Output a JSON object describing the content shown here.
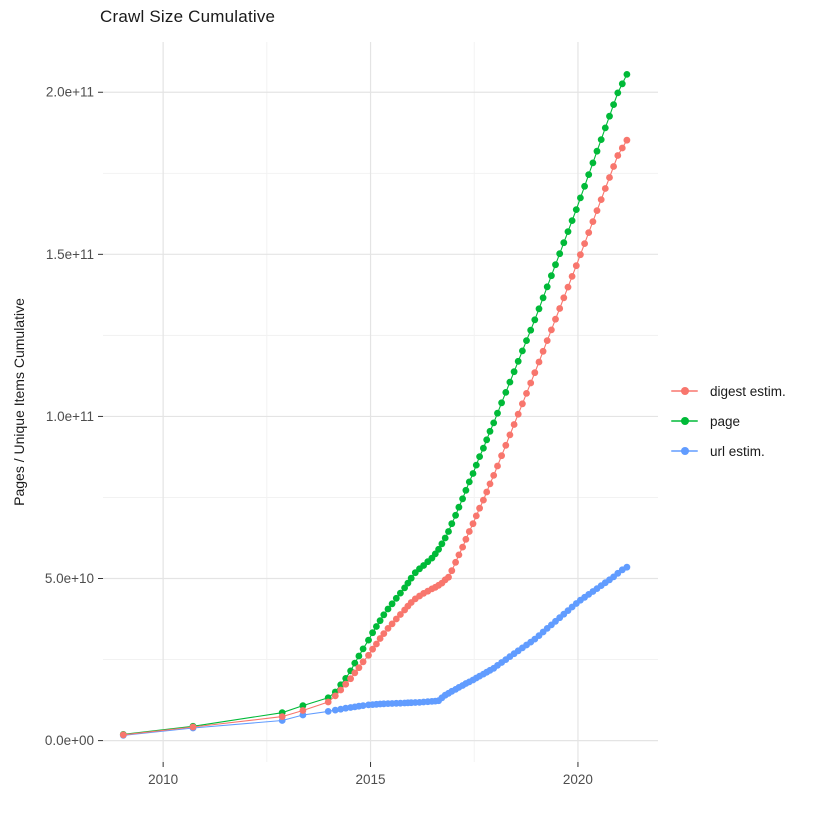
{
  "figure": {
    "title": "Crawl Size Cumulative"
  },
  "legend": {
    "items": [
      {
        "label": "digest estim.",
        "color": "#F8766D"
      },
      {
        "label": "page",
        "color": "#00BA38"
      },
      {
        "label": "url estim.",
        "color": "#619CFF"
      }
    ]
  },
  "chart_data": {
    "type": "line",
    "title": "Crawl Size Cumulative",
    "xlabel": "",
    "ylabel": "Pages / Unique Items Cumulative",
    "value_unit": "1e9",
    "grid": true,
    "legend_position": "right",
    "xlim": [
      2008.55,
      2021.93
    ],
    "ylim_e9": [
      -6.6,
      215.5
    ],
    "x_ticks": [
      {
        "value": 2010,
        "label": "2010"
      },
      {
        "value": 2015,
        "label": "2015"
      },
      {
        "value": 2020,
        "label": "2020"
      }
    ],
    "y_ticks": [
      {
        "value": 0,
        "label": "0.0e+00"
      },
      {
        "value": 50,
        "label": "5.0e+10"
      },
      {
        "value": 100,
        "label": "1.0e+11"
      },
      {
        "value": 150,
        "label": "1.5e+11"
      },
      {
        "value": 200,
        "label": "2.0e+11"
      }
    ],
    "x_minor": [
      2012.5,
      2017.5
    ],
    "y_minor": [
      25,
      75,
      125,
      175
    ],
    "style": {
      "background": "#FFFFFF",
      "grid_major_color": "#E4E4E4",
      "grid_minor_color": "#F1F1F1",
      "axis_text_color": "#4D4D4D",
      "tick_color": "#333333",
      "text_color": "#1A1A1A",
      "point_radius": 3.4,
      "line_width": 1.1
    },
    "draw_order": [
      1,
      2,
      0
    ],
    "series": [
      {
        "id": "digest",
        "name": "digest estim.",
        "color": "#F8766D",
        "points": [
          [
            2009.04,
            1.8
          ],
          [
            2010.72,
            4.2
          ],
          [
            2012.87,
            7.4
          ],
          [
            2013.37,
            9.3
          ],
          [
            2013.98,
            11.9
          ],
          [
            2014.15,
            13.8
          ],
          [
            2014.28,
            15.6
          ],
          [
            2014.4,
            17.4
          ],
          [
            2014.52,
            19.1
          ],
          [
            2014.62,
            20.9
          ],
          [
            2014.72,
            22.5
          ],
          [
            2014.82,
            24.3
          ],
          [
            2014.95,
            26.3
          ],
          [
            2015.05,
            28.2
          ],
          [
            2015.14,
            29.8
          ],
          [
            2015.23,
            31.5
          ],
          [
            2015.32,
            33.0
          ],
          [
            2015.42,
            34.6
          ],
          [
            2015.52,
            36.0
          ],
          [
            2015.62,
            37.5
          ],
          [
            2015.72,
            38.9
          ],
          [
            2015.82,
            40.3
          ],
          [
            2015.9,
            41.5
          ],
          [
            2015.98,
            42.6
          ],
          [
            2016.08,
            43.7
          ],
          [
            2016.18,
            44.6
          ],
          [
            2016.28,
            45.4
          ],
          [
            2016.38,
            46.1
          ],
          [
            2016.48,
            46.8
          ],
          [
            2016.56,
            47.3
          ],
          [
            2016.64,
            47.9
          ],
          [
            2016.72,
            48.6
          ],
          [
            2016.8,
            49.6
          ],
          [
            2016.88,
            50.4
          ],
          [
            2016.96,
            52.4
          ],
          [
            2017.05,
            55.0
          ],
          [
            2017.13,
            57.3
          ],
          [
            2017.22,
            59.7
          ],
          [
            2017.3,
            62.1
          ],
          [
            2017.38,
            64.5
          ],
          [
            2017.47,
            66.9
          ],
          [
            2017.55,
            69.3
          ],
          [
            2017.63,
            71.7
          ],
          [
            2017.72,
            74.2
          ],
          [
            2017.8,
            76.7
          ],
          [
            2017.88,
            79.2
          ],
          [
            2017.97,
            81.8
          ],
          [
            2018.06,
            84.7
          ],
          [
            2018.16,
            87.9
          ],
          [
            2018.26,
            91.1
          ],
          [
            2018.36,
            94.3
          ],
          [
            2018.46,
            97.5
          ],
          [
            2018.56,
            100.7
          ],
          [
            2018.66,
            103.9
          ],
          [
            2018.76,
            107.1
          ],
          [
            2018.86,
            110.3
          ],
          [
            2018.96,
            113.5
          ],
          [
            2019.06,
            116.8
          ],
          [
            2019.16,
            120.1
          ],
          [
            2019.26,
            123.4
          ],
          [
            2019.36,
            126.7
          ],
          [
            2019.46,
            130.0
          ],
          [
            2019.56,
            133.3
          ],
          [
            2019.66,
            136.6
          ],
          [
            2019.76,
            139.9
          ],
          [
            2019.86,
            143.2
          ],
          [
            2019.96,
            146.5
          ],
          [
            2020.06,
            149.9
          ],
          [
            2020.16,
            153.3
          ],
          [
            2020.26,
            156.7
          ],
          [
            2020.36,
            160.1
          ],
          [
            2020.46,
            163.5
          ],
          [
            2020.56,
            166.9
          ],
          [
            2020.66,
            170.3
          ],
          [
            2020.76,
            173.7
          ],
          [
            2020.86,
            177.1
          ],
          [
            2020.96,
            180.5
          ],
          [
            2021.07,
            182.8
          ],
          [
            2021.18,
            185.2
          ]
        ]
      },
      {
        "id": "page",
        "name": "page",
        "color": "#00BA38",
        "points": [
          [
            2009.04,
            1.9
          ],
          [
            2010.72,
            4.4
          ],
          [
            2012.87,
            8.6
          ],
          [
            2013.37,
            10.8
          ],
          [
            2013.98,
            13.2
          ],
          [
            2014.15,
            15.0
          ],
          [
            2014.28,
            17.2
          ],
          [
            2014.4,
            19.2
          ],
          [
            2014.52,
            21.5
          ],
          [
            2014.62,
            23.9
          ],
          [
            2014.72,
            26.1
          ],
          [
            2014.82,
            28.3
          ],
          [
            2014.95,
            31.0
          ],
          [
            2015.05,
            33.3
          ],
          [
            2015.14,
            35.2
          ],
          [
            2015.23,
            37.0
          ],
          [
            2015.32,
            38.8
          ],
          [
            2015.42,
            40.6
          ],
          [
            2015.52,
            42.2
          ],
          [
            2015.62,
            43.9
          ],
          [
            2015.72,
            45.5
          ],
          [
            2015.82,
            47.1
          ],
          [
            2015.9,
            48.6
          ],
          [
            2015.98,
            50.1
          ],
          [
            2016.08,
            51.8
          ],
          [
            2016.18,
            53.0
          ],
          [
            2016.28,
            54.0
          ],
          [
            2016.38,
            55.2
          ],
          [
            2016.48,
            56.3
          ],
          [
            2016.56,
            57.6
          ],
          [
            2016.64,
            59.0
          ],
          [
            2016.72,
            60.7
          ],
          [
            2016.8,
            62.5
          ],
          [
            2016.88,
            64.5
          ],
          [
            2016.96,
            66.9
          ],
          [
            2017.05,
            69.5
          ],
          [
            2017.13,
            72.0
          ],
          [
            2017.22,
            74.6
          ],
          [
            2017.3,
            77.2
          ],
          [
            2017.38,
            79.8
          ],
          [
            2017.47,
            82.4
          ],
          [
            2017.55,
            85.0
          ],
          [
            2017.63,
            87.6
          ],
          [
            2017.72,
            90.2
          ],
          [
            2017.8,
            92.8
          ],
          [
            2017.88,
            95.4
          ],
          [
            2017.97,
            98.0
          ],
          [
            2018.06,
            101.0
          ],
          [
            2018.16,
            104.2
          ],
          [
            2018.26,
            107.4
          ],
          [
            2018.36,
            110.6
          ],
          [
            2018.46,
            113.8
          ],
          [
            2018.56,
            117.0
          ],
          [
            2018.66,
            120.2
          ],
          [
            2018.76,
            123.4
          ],
          [
            2018.86,
            126.6
          ],
          [
            2018.96,
            129.8
          ],
          [
            2019.06,
            133.2
          ],
          [
            2019.16,
            136.6
          ],
          [
            2019.26,
            140.0
          ],
          [
            2019.36,
            143.4
          ],
          [
            2019.46,
            146.8
          ],
          [
            2019.56,
            150.2
          ],
          [
            2019.66,
            153.6
          ],
          [
            2019.76,
            157.0
          ],
          [
            2019.86,
            160.4
          ],
          [
            2019.96,
            163.8
          ],
          [
            2020.06,
            167.4
          ],
          [
            2020.16,
            171.0
          ],
          [
            2020.26,
            174.6
          ],
          [
            2020.36,
            178.2
          ],
          [
            2020.46,
            181.8
          ],
          [
            2020.56,
            185.4
          ],
          [
            2020.66,
            189.0
          ],
          [
            2020.76,
            192.6
          ],
          [
            2020.86,
            196.2
          ],
          [
            2020.96,
            199.8
          ],
          [
            2021.07,
            202.6
          ],
          [
            2021.18,
            205.5
          ]
        ]
      },
      {
        "id": "url",
        "name": "url estim.",
        "color": "#619CFF",
        "points": [
          [
            2009.04,
            1.6
          ],
          [
            2010.72,
            3.9
          ],
          [
            2012.87,
            6.2
          ],
          [
            2013.37,
            7.9
          ],
          [
            2013.98,
            9.0
          ],
          [
            2014.15,
            9.4
          ],
          [
            2014.28,
            9.7
          ],
          [
            2014.4,
            10.0
          ],
          [
            2014.52,
            10.2
          ],
          [
            2014.62,
            10.4
          ],
          [
            2014.72,
            10.6
          ],
          [
            2014.82,
            10.8
          ],
          [
            2014.95,
            11.0
          ],
          [
            2015.05,
            11.1
          ],
          [
            2015.14,
            11.2
          ],
          [
            2015.23,
            11.3
          ],
          [
            2015.32,
            11.35
          ],
          [
            2015.42,
            11.4
          ],
          [
            2015.52,
            11.45
          ],
          [
            2015.62,
            11.5
          ],
          [
            2015.72,
            11.55
          ],
          [
            2015.82,
            11.6
          ],
          [
            2015.9,
            11.65
          ],
          [
            2015.98,
            11.7
          ],
          [
            2016.08,
            11.75
          ],
          [
            2016.18,
            11.8
          ],
          [
            2016.28,
            11.9
          ],
          [
            2016.38,
            12.0
          ],
          [
            2016.48,
            12.1
          ],
          [
            2016.56,
            12.2
          ],
          [
            2016.64,
            12.3
          ],
          [
            2016.72,
            13.2
          ],
          [
            2016.8,
            14.0
          ],
          [
            2016.88,
            14.6
          ],
          [
            2016.96,
            15.2
          ],
          [
            2017.05,
            15.8
          ],
          [
            2017.13,
            16.4
          ],
          [
            2017.22,
            17.0
          ],
          [
            2017.3,
            17.6
          ],
          [
            2017.38,
            18.1
          ],
          [
            2017.47,
            18.7
          ],
          [
            2017.55,
            19.3
          ],
          [
            2017.63,
            19.9
          ],
          [
            2017.72,
            20.5
          ],
          [
            2017.8,
            21.1
          ],
          [
            2017.88,
            21.7
          ],
          [
            2017.97,
            22.3
          ],
          [
            2018.06,
            23.2
          ],
          [
            2018.16,
            24.1
          ],
          [
            2018.26,
            25.0
          ],
          [
            2018.36,
            25.9
          ],
          [
            2018.46,
            26.8
          ],
          [
            2018.56,
            27.7
          ],
          [
            2018.66,
            28.6
          ],
          [
            2018.76,
            29.5
          ],
          [
            2018.86,
            30.4
          ],
          [
            2018.96,
            31.3
          ],
          [
            2019.06,
            32.4
          ],
          [
            2019.16,
            33.5
          ],
          [
            2019.26,
            34.6
          ],
          [
            2019.36,
            35.7
          ],
          [
            2019.46,
            36.8
          ],
          [
            2019.56,
            37.9
          ],
          [
            2019.66,
            39.0
          ],
          [
            2019.76,
            40.1
          ],
          [
            2019.86,
            41.2
          ],
          [
            2019.96,
            42.3
          ],
          [
            2020.06,
            43.3
          ],
          [
            2020.16,
            44.2
          ],
          [
            2020.26,
            45.1
          ],
          [
            2020.36,
            46.0
          ],
          [
            2020.46,
            46.9
          ],
          [
            2020.56,
            47.8
          ],
          [
            2020.66,
            48.7
          ],
          [
            2020.76,
            49.6
          ],
          [
            2020.86,
            50.5
          ],
          [
            2020.96,
            51.6
          ],
          [
            2021.07,
            52.7
          ],
          [
            2021.18,
            53.5
          ]
        ]
      }
    ]
  }
}
